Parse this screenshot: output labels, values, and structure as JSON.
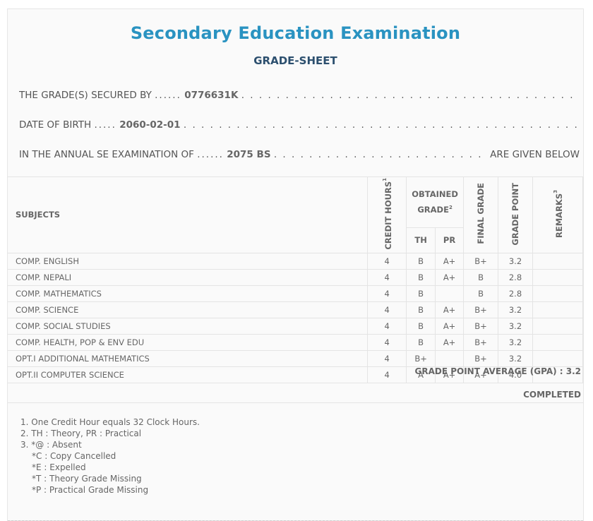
{
  "header": {
    "title": "Secondary Education Examination",
    "subtitle": "GRADE-SHEET"
  },
  "student": {
    "secured_by_label": "THE GRADE(S) SECURED BY",
    "secured_by_value": "0776631K",
    "dob_label": "DATE OF BIRTH",
    "dob_value": "2060-02-01",
    "exam_label": "IN THE ANNUAL SE EXAMINATION OF",
    "exam_value": "2075 BS",
    "exam_tail": "ARE GIVEN BELOW"
  },
  "table": {
    "headers": {
      "subjects": "SUBJECTS",
      "credit_hours": "CREDIT HOURS",
      "credit_sup": "1",
      "obtained_grade": "OBTAINED GRADE",
      "obtained_sup": "2",
      "th": "TH",
      "pr": "PR",
      "final_grade": "FINAL GRADE",
      "grade_point": "GRADE POINT",
      "remarks": "REMARKS",
      "remarks_sup": "3"
    },
    "rows": [
      {
        "subject": "COMP. ENGLISH",
        "credit": "4",
        "th": "B",
        "pr": "A+",
        "final": "B+",
        "gp": "3.2",
        "remarks": ""
      },
      {
        "subject": "COMP. NEPALI",
        "credit": "4",
        "th": "B",
        "pr": "A+",
        "final": "B",
        "gp": "2.8",
        "remarks": ""
      },
      {
        "subject": "COMP. MATHEMATICS",
        "credit": "4",
        "th": "B",
        "pr": "",
        "final": "B",
        "gp": "2.8",
        "remarks": ""
      },
      {
        "subject": "COMP. SCIENCE",
        "credit": "4",
        "th": "B",
        "pr": "A+",
        "final": "B+",
        "gp": "3.2",
        "remarks": ""
      },
      {
        "subject": "COMP. SOCIAL STUDIES",
        "credit": "4",
        "th": "B",
        "pr": "A+",
        "final": "B+",
        "gp": "3.2",
        "remarks": ""
      },
      {
        "subject": "COMP. HEALTH, POP & ENV EDU",
        "credit": "4",
        "th": "B",
        "pr": "A+",
        "final": "B+",
        "gp": "3.2",
        "remarks": ""
      },
      {
        "subject": "OPT.I ADDITIONAL MATHEMATICS",
        "credit": "4",
        "th": "B+",
        "pr": "",
        "final": "B+",
        "gp": "3.2",
        "remarks": ""
      },
      {
        "subject": "OPT.II COMPUTER SCIENCE",
        "credit": "4",
        "th": "A",
        "pr": "A+",
        "final": "A+",
        "gp": "4.0",
        "remarks": ""
      }
    ]
  },
  "summary": {
    "gpa": "GRADE POINT AVERAGE (GPA) : 3.2",
    "status": "COMPLETED"
  },
  "notes": [
    "1. One Credit Hour equals 32 Clock Hours.",
    "2. TH : Theory, PR : Practical",
    "3. *@ : Absent",
    "*C : Copy Cancelled",
    "*E : Expelled",
    "*T : Theory Grade Missing",
    "*P : Practical Grade Missing"
  ]
}
